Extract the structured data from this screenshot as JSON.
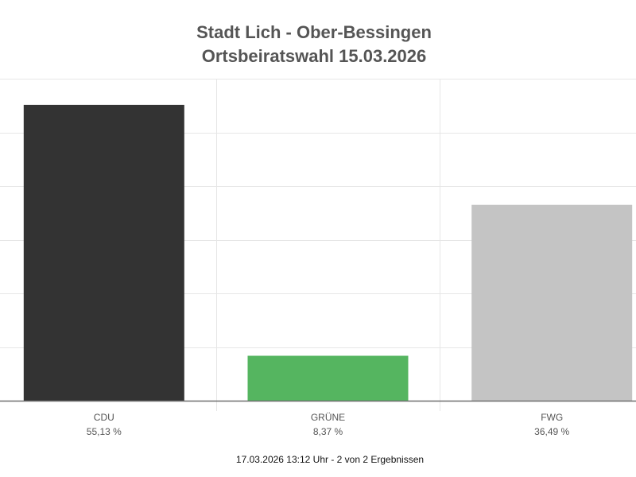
{
  "chart_data": {
    "type": "bar",
    "title": "Stadt Lich - Ober-Bessingen",
    "subtitle": "Ortsbeiratswahl 15.03.2026",
    "categories": [
      "CDU",
      "GRÜNE",
      "FWG"
    ],
    "values": [
      55.13,
      8.37,
      36.49
    ],
    "value_labels": [
      "55,13 %",
      "8,37 %",
      "36,49 %"
    ],
    "colors": [
      "#333333",
      "#55b560",
      "#c4c4c4"
    ],
    "ylim": [
      0,
      60
    ],
    "y_gridlines": [
      10,
      20,
      30,
      40,
      50,
      60
    ],
    "grid": true,
    "legend": "none"
  },
  "footer": {
    "status_text": "17.03.2026 13:12 Uhr - 2 von 2 Ergebnissen"
  }
}
